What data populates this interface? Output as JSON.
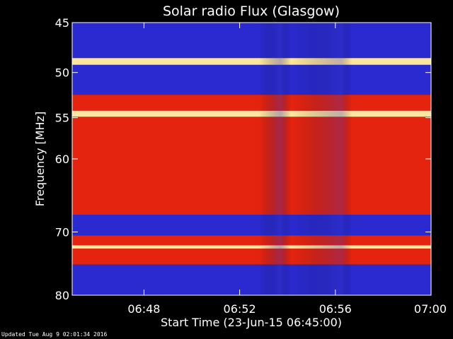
{
  "chart_data": {
    "type": "heatmap",
    "title": "Solar radio Flux (Glasgow)",
    "xlabel": "Start Time (23-Jun-15 06:45:00)",
    "ylabel": "Frequency [MHz]",
    "x_range_minutes": [
      0,
      15
    ],
    "x_ticks": [
      {
        "minute": 3,
        "label": "06:48"
      },
      {
        "minute": 7,
        "label": "06:52"
      },
      {
        "minute": 11,
        "label": "06:56"
      },
      {
        "minute": 15,
        "label": "07:00"
      }
    ],
    "y_scale": "log",
    "y_range_mhz": [
      45,
      80
    ],
    "y_ticks": [
      {
        "mhz": 45,
        "label": "45"
      },
      {
        "mhz": 50,
        "label": "50"
      },
      {
        "mhz": 55,
        "label": "55"
      },
      {
        "mhz": 60,
        "label": "60"
      },
      {
        "mhz": 70,
        "label": "70"
      },
      {
        "mhz": 80,
        "label": "80"
      }
    ],
    "bands_mhz": [
      {
        "from": 45,
        "to": 48.5,
        "level": "low"
      },
      {
        "from": 48.5,
        "to": 49.2,
        "level": "very-high"
      },
      {
        "from": 49.2,
        "to": 52.4,
        "level": "low"
      },
      {
        "from": 52.4,
        "to": 54.2,
        "level": "high"
      },
      {
        "from": 54.2,
        "to": 54.9,
        "level": "very-high"
      },
      {
        "from": 54.9,
        "to": 67.5,
        "level": "high"
      },
      {
        "from": 67.5,
        "to": 70.5,
        "level": "low"
      },
      {
        "from": 70.5,
        "to": 72.0,
        "level": "high"
      },
      {
        "from": 72.0,
        "to": 72.5,
        "level": "very-high"
      },
      {
        "from": 72.5,
        "to": 75.0,
        "level": "high"
      },
      {
        "from": 75.0,
        "to": 80,
        "level": "low"
      }
    ],
    "colors": {
      "low": "#2a2ad0",
      "mid": "#7a1a9a",
      "high": "#e52410",
      "very-high": "#ffe6a0"
    }
  },
  "footer": "Updated Tue Aug  9 02:01:34 2016"
}
